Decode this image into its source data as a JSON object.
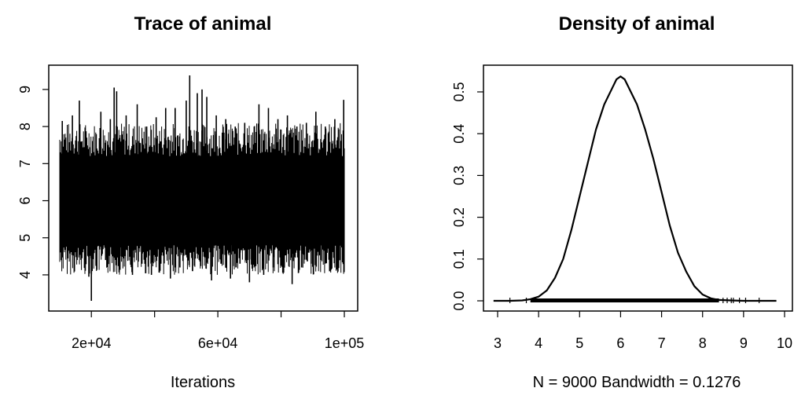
{
  "chart_data": [
    {
      "type": "line",
      "title": "Trace of animal",
      "xlabel": "Iterations",
      "ylabel": "",
      "xlim": [
        10000,
        100000
      ],
      "ylim": [
        3.3,
        9.4
      ],
      "x_ticks": [
        20000,
        40000,
        60000,
        80000,
        100000
      ],
      "x_tick_labels": [
        "2e+04",
        "",
        "6e+04",
        "",
        "1e+05"
      ],
      "y_ticks": [
        4,
        5,
        6,
        7,
        8,
        9
      ],
      "y_tick_labels": [
        "4",
        "5",
        "6",
        "7",
        "8",
        "9"
      ],
      "samples": 9000,
      "band": {
        "x": [
          10000,
          100000
        ],
        "lower": 4.8,
        "upper": 7.2,
        "center": 6.0
      },
      "spikes": [
        {
          "x": 10800,
          "y": 8.15
        },
        {
          "x": 12500,
          "y": 4.6
        },
        {
          "x": 14000,
          "y": 8.3
        },
        {
          "x": 15500,
          "y": 4.4
        },
        {
          "x": 16200,
          "y": 8.7
        },
        {
          "x": 18000,
          "y": 4.2
        },
        {
          "x": 19200,
          "y": 3.95
        },
        {
          "x": 20000,
          "y": 3.3
        },
        {
          "x": 21500,
          "y": 4.3
        },
        {
          "x": 23000,
          "y": 8.4
        },
        {
          "x": 24500,
          "y": 4.4
        },
        {
          "x": 26000,
          "y": 8.2
        },
        {
          "x": 27200,
          "y": 9.05
        },
        {
          "x": 28000,
          "y": 8.95
        },
        {
          "x": 29500,
          "y": 4.5
        },
        {
          "x": 31000,
          "y": 8.3
        },
        {
          "x": 33000,
          "y": 4.0
        },
        {
          "x": 34500,
          "y": 8.6
        },
        {
          "x": 36000,
          "y": 4.3
        },
        {
          "x": 37500,
          "y": 8.0
        },
        {
          "x": 39000,
          "y": 4.0
        },
        {
          "x": 40500,
          "y": 8.25
        },
        {
          "x": 42000,
          "y": 4.3
        },
        {
          "x": 43500,
          "y": 8.5
        },
        {
          "x": 45000,
          "y": 3.9
        },
        {
          "x": 46500,
          "y": 8.5
        },
        {
          "x": 48000,
          "y": 4.2
        },
        {
          "x": 50000,
          "y": 8.7
        },
        {
          "x": 51100,
          "y": 9.38
        },
        {
          "x": 52000,
          "y": 4.1
        },
        {
          "x": 53500,
          "y": 8.9
        },
        {
          "x": 55000,
          "y": 9.0
        },
        {
          "x": 56500,
          "y": 8.8
        },
        {
          "x": 58000,
          "y": 3.85
        },
        {
          "x": 59500,
          "y": 8.3
        },
        {
          "x": 61000,
          "y": 4.3
        },
        {
          "x": 62500,
          "y": 8.2
        },
        {
          "x": 64000,
          "y": 3.9
        },
        {
          "x": 65500,
          "y": 8.0
        },
        {
          "x": 67000,
          "y": 4.3
        },
        {
          "x": 68500,
          "y": 8.1
        },
        {
          "x": 70000,
          "y": 3.8
        },
        {
          "x": 71500,
          "y": 8.0
        },
        {
          "x": 73000,
          "y": 8.6
        },
        {
          "x": 74500,
          "y": 4.0
        },
        {
          "x": 76000,
          "y": 8.5
        },
        {
          "x": 77500,
          "y": 4.2
        },
        {
          "x": 79000,
          "y": 8.2
        },
        {
          "x": 80500,
          "y": 4.3
        },
        {
          "x": 82000,
          "y": 8.3
        },
        {
          "x": 83500,
          "y": 3.75
        },
        {
          "x": 85000,
          "y": 8.0
        },
        {
          "x": 86500,
          "y": 4.2
        },
        {
          "x": 88000,
          "y": 8.1
        },
        {
          "x": 89500,
          "y": 4.3
        },
        {
          "x": 91000,
          "y": 8.4
        },
        {
          "x": 92500,
          "y": 4.4
        },
        {
          "x": 94000,
          "y": 8.0
        },
        {
          "x": 95500,
          "y": 4.1
        },
        {
          "x": 97000,
          "y": 8.2
        },
        {
          "x": 98500,
          "y": 4.4
        },
        {
          "x": 99800,
          "y": 8.72
        }
      ]
    },
    {
      "type": "line",
      "title": "Density of animal",
      "xlabel": "N = 9000   Bandwidth = 0.1276",
      "ylabel": "",
      "xlim": [
        2.8,
        10.0
      ],
      "ylim": [
        -0.02,
        0.56
      ],
      "x_ticks": [
        3,
        4,
        5,
        6,
        7,
        8,
        9,
        10
      ],
      "x_tick_labels": [
        "3",
        "4",
        "5",
        "6",
        "7",
        "8",
        "9",
        "10"
      ],
      "y_ticks": [
        0.0,
        0.1,
        0.2,
        0.3,
        0.4,
        0.5
      ],
      "y_tick_labels": [
        "0.0",
        "0.1",
        "0.2",
        "0.3",
        "0.4",
        "0.5"
      ],
      "series": [
        {
          "x": [
            2.9,
            3.3,
            3.6,
            3.8,
            4.0,
            4.2,
            4.4,
            4.6,
            4.8,
            5.0,
            5.2,
            5.4,
            5.6,
            5.8,
            5.9,
            6.0,
            6.1,
            6.2,
            6.4,
            6.6,
            6.8,
            7.0,
            7.2,
            7.4,
            7.6,
            7.8,
            8.0,
            8.2,
            8.4,
            8.7,
            9.0,
            9.4,
            9.8
          ],
          "y": [
            0.0,
            0.0,
            0.001,
            0.004,
            0.01,
            0.025,
            0.055,
            0.1,
            0.17,
            0.25,
            0.33,
            0.41,
            0.47,
            0.51,
            0.53,
            0.537,
            0.53,
            0.51,
            0.47,
            0.41,
            0.34,
            0.26,
            0.18,
            0.115,
            0.07,
            0.035,
            0.015,
            0.006,
            0.002,
            0.001,
            0.0,
            0.0,
            0.0
          ]
        }
      ],
      "rug": {
        "dense_from": 3.8,
        "dense_to": 8.4,
        "sparse": [
          3.3,
          3.7,
          8.5,
          8.6,
          8.7,
          8.75,
          8.9,
          9.05,
          9.38
        ]
      }
    }
  ]
}
